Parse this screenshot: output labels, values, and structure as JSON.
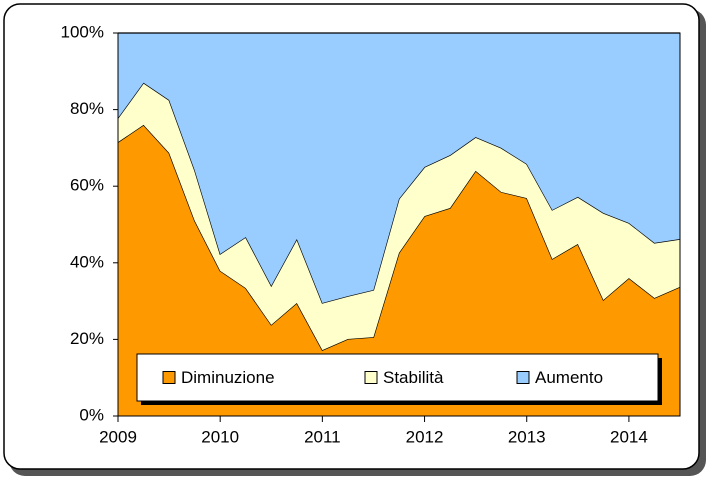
{
  "chart_data": {
    "type": "area",
    "stacked": true,
    "x": [
      2009,
      2009.25,
      2009.5,
      2009.75,
      2010,
      2010.25,
      2010.5,
      2010.75,
      2011,
      2011.25,
      2011.5,
      2011.75,
      2012,
      2012.25,
      2012.5,
      2012.75,
      2013,
      2013.25,
      2013.5,
      2013.75,
      2014,
      2014.25,
      2014.5
    ],
    "series": [
      {
        "name": "Diminuzione",
        "color": "#ff9900",
        "values": [
          71.5,
          76,
          68.7,
          51,
          37.9,
          33.4,
          23.8,
          29.5,
          17.2,
          20.1,
          20.6,
          42.6,
          52.2,
          54.3,
          64,
          58.5,
          56.9,
          41,
          44.9,
          30.3,
          36,
          30.8,
          33.7
        ]
      },
      {
        "name": "Stabilità",
        "color": "#ffffcc",
        "values": [
          6.3,
          11,
          13.8,
          13.2,
          4.4,
          13.3,
          10.2,
          16.7,
          12.3,
          11.2,
          12.3,
          14.1,
          12.8,
          13.8,
          8.8,
          11.5,
          8.9,
          12.8,
          12.3,
          22.7,
          14.4,
          14.4,
          12.5
        ]
      },
      {
        "name": "Aumento",
        "color": "#99ccff",
        "values": [
          22.2,
          13,
          17.5,
          35.8,
          57.7,
          53.3,
          66,
          53.8,
          70.5,
          68.7,
          67.1,
          43.3,
          35,
          31.9,
          27.2,
          30,
          34.2,
          46.2,
          42.8,
          47,
          49.6,
          54.8,
          53.8
        ]
      }
    ],
    "xlim": [
      2009,
      2014.5
    ],
    "xticks": [
      2009,
      2010,
      2011,
      2012,
      2013,
      2014
    ],
    "ylim": [
      0,
      100
    ],
    "yticks": [
      {
        "value": 0,
        "label": "0%"
      },
      {
        "value": 20,
        "label": "20%"
      },
      {
        "value": 40,
        "label": "40%"
      },
      {
        "value": 60,
        "label": "60%"
      },
      {
        "value": 80,
        "label": "80%"
      },
      {
        "value": 100,
        "label": "100%"
      }
    ],
    "legend": "bottom"
  }
}
